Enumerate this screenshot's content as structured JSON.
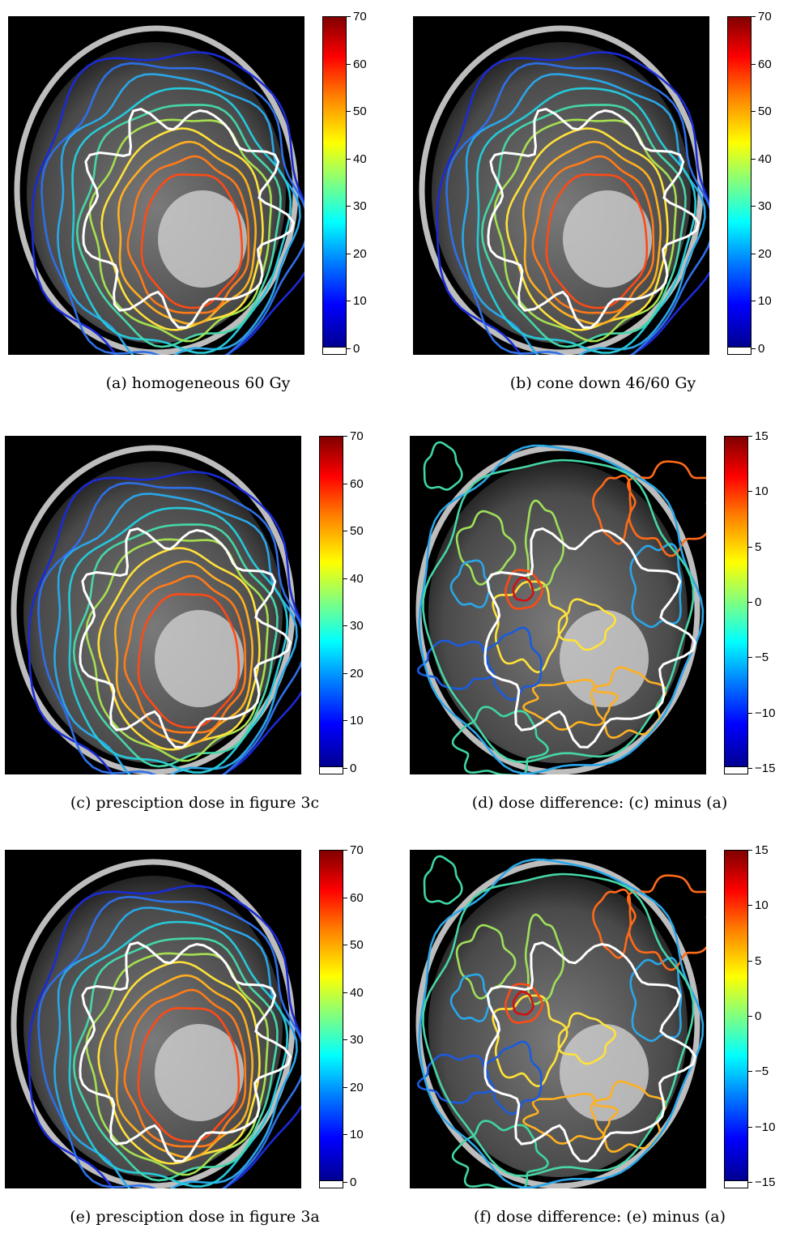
{
  "panels": [
    {
      "id": "a",
      "caption": "(a) homogeneous 60 Gy",
      "ticks": [
        "70",
        "60",
        "50",
        "40",
        "30",
        "20",
        "10",
        "0"
      ],
      "type": "dose"
    },
    {
      "id": "b",
      "caption": "(b) cone down 46/60 Gy",
      "ticks": [
        "70",
        "60",
        "50",
        "40",
        "30",
        "20",
        "10",
        "0"
      ],
      "type": "dose"
    },
    {
      "id": "c",
      "caption": "(c) presciption dose in figure 3c",
      "ticks": [
        "70",
        "60",
        "50",
        "40",
        "30",
        "20",
        "10",
        "0"
      ],
      "type": "dose"
    },
    {
      "id": "d",
      "caption": "(d) dose difference: (c) minus (a)",
      "ticks": [
        "15",
        "10",
        "5",
        "0",
        "−5",
        "−10",
        "−15"
      ],
      "type": "diff"
    },
    {
      "id": "e",
      "caption": "(e) presciption dose in figure 3a",
      "ticks": [
        "70",
        "60",
        "50",
        "40",
        "30",
        "20",
        "10",
        "0"
      ],
      "type": "dose"
    },
    {
      "id": "f",
      "caption": "(f) dose difference: (e) minus (a)",
      "ticks": [
        "15",
        "10",
        "5",
        "0",
        "−5",
        "−10",
        "−15"
      ],
      "type": "diff"
    }
  ],
  "colors": {
    "contour_outer": "#1f3fd0",
    "contour_mid": "#19c8d8",
    "contour_warm": "#ffd23a",
    "contour_hot": "#ff5a1e",
    "target": "#ffffff"
  }
}
